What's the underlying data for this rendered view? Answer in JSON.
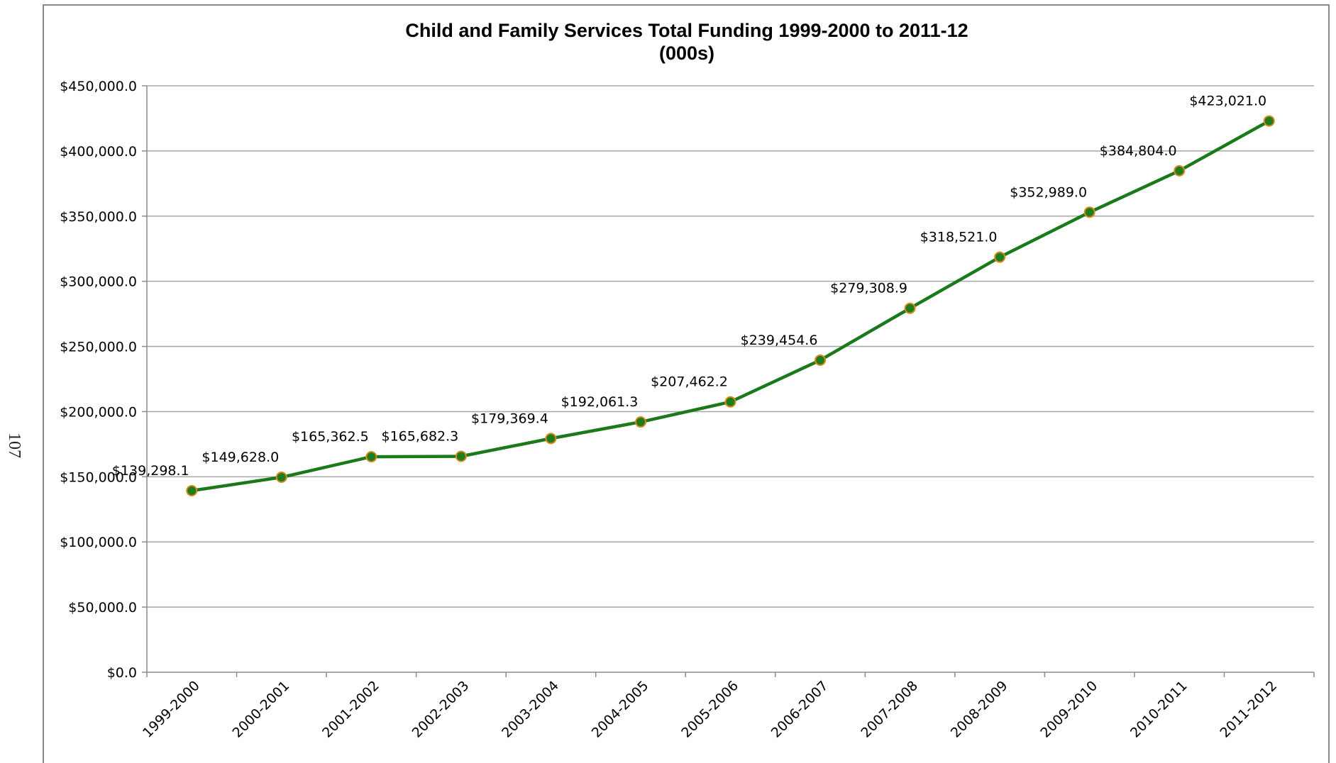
{
  "page_number": "107",
  "chart_data": {
    "type": "line",
    "title": "Child and Family Services Total Funding 1999-2000 to 2011-12",
    "subtitle": "(000s)",
    "categories": [
      "1999-2000",
      "2000-2001",
      "2001-2002",
      "2002-2003",
      "2003-2004",
      "2004-2005",
      "2005-2006",
      "2006-2007",
      "2007-2008",
      "2008-2009",
      "2009-2010",
      "2010-2011",
      "2011-2012"
    ],
    "values": [
      139298.1,
      149628.0,
      165362.5,
      165682.3,
      179369.4,
      192061.3,
      207462.2,
      239454.6,
      279308.9,
      318521.0,
      352989.0,
      384804.0,
      423021.0
    ],
    "data_labels": [
      "$139,298.1",
      "$149,628.0",
      "$165,362.5",
      "$165,682.3",
      "$179,369.4",
      "$192,061.3",
      "$207,462.2",
      "$239,454.6",
      "$279,308.9",
      "$318,521.0",
      "$352,989.0",
      "$384,804.0",
      "$423,021.0"
    ],
    "yticks": [
      0,
      50000,
      100000,
      150000,
      200000,
      250000,
      300000,
      350000,
      400000,
      450000
    ],
    "ytick_labels": [
      "$0.0",
      "$50,000.0",
      "$100,000.0",
      "$150,000.0",
      "$200,000.0",
      "$250,000.0",
      "$300,000.0",
      "$350,000.0",
      "$400,000.0",
      "$450,000.0"
    ],
    "ylim": [
      0,
      450000
    ],
    "xlabel": "",
    "ylabel": "",
    "grid": true,
    "legend": "none",
    "colors": {
      "line": "#1a7a1a",
      "marker_fill": "#1e7e1e",
      "marker_edge": "#d98a1c",
      "grid": "#a6a6a6",
      "axis": "#8c8c8c"
    }
  }
}
